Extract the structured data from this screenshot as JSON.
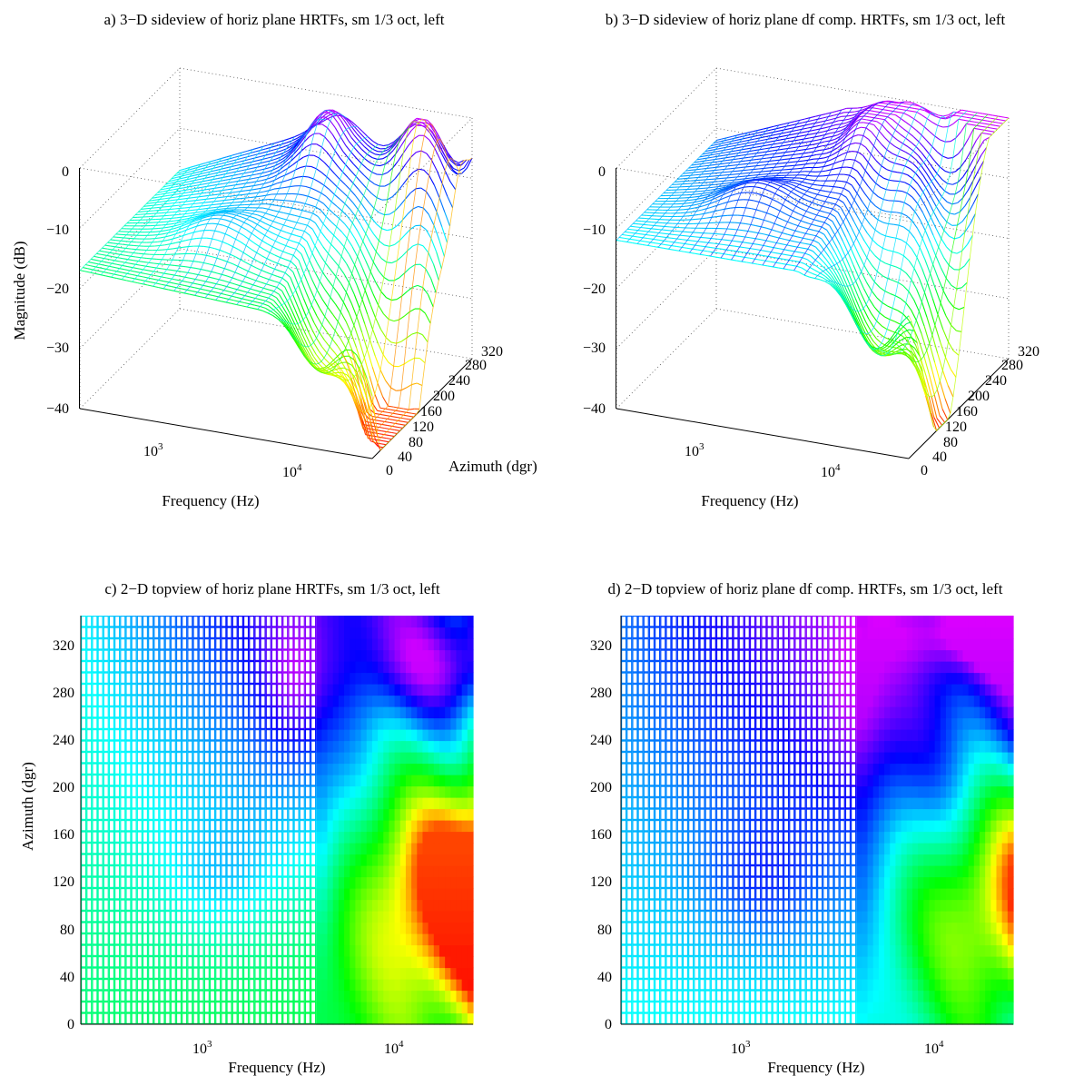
{
  "panels": {
    "a": {
      "title": "a) 3−D sideview of horiz plane HRTFs, sm 1/3 oct, left",
      "zlabel": "Magnitude (dB)",
      "xlabel": "Frequency (Hz)",
      "ylabel": "Azimuth (dgr)",
      "zticks": [
        "0",
        "−10",
        "−20",
        "−30",
        "−40"
      ],
      "xticks": [
        "10",
        "10"
      ],
      "xtick_exps": [
        "3",
        "4"
      ],
      "yticks": [
        "0",
        "40",
        "80",
        "120",
        "160",
        "200",
        "240",
        "280",
        "320"
      ]
    },
    "b": {
      "title": "b) 3−D sideview of horiz plane df comp. HRTFs, sm 1/3 oct, left",
      "zlabel": "",
      "xlabel": "Frequency (Hz)",
      "ylabel": "",
      "zticks": [
        "0",
        "−10",
        "−20",
        "−30",
        "−40"
      ],
      "xticks": [
        "10",
        "10"
      ],
      "xtick_exps": [
        "3",
        "4"
      ],
      "yticks": [
        "0",
        "40",
        "80",
        "120",
        "160",
        "200",
        "240",
        "280",
        "320"
      ]
    },
    "c": {
      "title": "c) 2−D topview of horiz plane HRTFs, sm 1/3 oct, left",
      "xlabel": "Frequency (Hz)",
      "ylabel": "Azimuth (dgr)",
      "xticks": [
        "10",
        "10"
      ],
      "xtick_exps": [
        "3",
        "4"
      ],
      "yticks": [
        "0",
        "40",
        "80",
        "120",
        "160",
        "200",
        "240",
        "280",
        "320"
      ]
    },
    "d": {
      "title": "d) 2−D topview of horiz plane df comp. HRTFs, sm 1/3 oct, left",
      "xlabel": "Frequency (Hz)",
      "ylabel": "",
      "xticks": [
        "10",
        "10"
      ],
      "xtick_exps": [
        "3",
        "4"
      ],
      "yticks": [
        "0",
        "40",
        "80",
        "120",
        "160",
        "200",
        "240",
        "280",
        "320"
      ]
    }
  },
  "chart_data": [
    {
      "type": "surface",
      "panel": "a",
      "title": "a) 3−D sideview of horiz plane HRTFs, sm 1/3 oct, left",
      "xlabel": "Frequency (Hz)",
      "ylabel": "Azimuth (dgr)",
      "zlabel": "Magnitude (dB)",
      "xscale": "log",
      "xlim": [
        200,
        22000
      ],
      "ylim": [
        0,
        350
      ],
      "zlim": [
        -40,
        0
      ],
      "ytick_values": [
        0,
        40,
        80,
        120,
        160,
        200,
        240,
        280,
        320
      ],
      "colormap": "hsv",
      "approx_magnitude_db": {
        "frequency_hz": [
          200,
          1000,
          3000,
          6000,
          10000,
          20000
        ],
        "azimuth_0": [
          -17,
          -20,
          -28,
          -35,
          -40,
          -40
        ],
        "azimuth_120": [
          -17,
          -15,
          -12,
          -28,
          -38,
          -40
        ],
        "azimuth_320": [
          -17,
          -7,
          -3,
          0,
          -2,
          -8
        ]
      }
    },
    {
      "type": "surface",
      "panel": "b",
      "title": "b) 3−D sideview of horiz plane df comp. HRTFs, sm 1/3 oct, left",
      "xlabel": "Frequency (Hz)",
      "ylabel": "",
      "zlabel": "",
      "xscale": "log",
      "xlim": [
        200,
        22000
      ],
      "ylim": [
        0,
        350
      ],
      "zlim": [
        -40,
        0
      ],
      "ytick_values": [
        0,
        40,
        80,
        120,
        160,
        200,
        240,
        280,
        320
      ],
      "colormap": "hsv",
      "approx_magnitude_db": {
        "frequency_hz": [
          200,
          1000,
          3000,
          6000,
          10000,
          20000
        ],
        "azimuth_0": [
          -12,
          -18,
          -22,
          -30,
          -36,
          -40
        ],
        "azimuth_120": [
          -12,
          -13,
          -15,
          -25,
          -34,
          -38
        ],
        "azimuth_320": [
          -12,
          -6,
          -2,
          0,
          0,
          -2
        ]
      }
    },
    {
      "type": "heatmap",
      "panel": "c",
      "title": "c) 2−D topview of horiz plane HRTFs, sm 1/3 oct, left",
      "xlabel": "Frequency (Hz)",
      "ylabel": "Azimuth (dgr)",
      "xscale": "log",
      "xlim": [
        200,
        22000
      ],
      "ylim": [
        0,
        350
      ],
      "ytick_values": [
        0,
        40,
        80,
        120,
        160,
        200,
        240,
        280,
        320
      ],
      "colormap": "hsv"
    },
    {
      "type": "heatmap",
      "panel": "d",
      "title": "d) 2−D topview of horiz plane df comp. HRTFs, sm 1/3 oct, left",
      "xlabel": "Frequency (Hz)",
      "ylabel": "",
      "xscale": "log",
      "xlim": [
        200,
        22000
      ],
      "ylim": [
        0,
        350
      ],
      "ytick_values": [
        0,
        40,
        80,
        120,
        160,
        200,
        240,
        280,
        320
      ],
      "colormap": "hsv"
    }
  ]
}
